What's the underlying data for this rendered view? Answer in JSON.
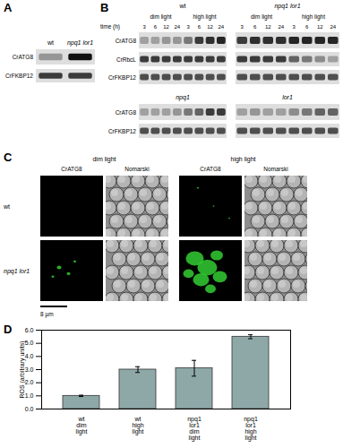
{
  "panels": {
    "A": {
      "label": "A",
      "lanes": [
        "wt",
        "npq1 lor1"
      ],
      "rows": [
        {
          "name": "CrATG8",
          "band_intensity": [
            0.35,
            1.0
          ]
        },
        {
          "name": "CrFKBP12",
          "band_intensity": [
            0.8,
            0.8
          ]
        }
      ]
    },
    "B": {
      "label": "B",
      "time_label": "time (h)",
      "conditions": [
        "dim light",
        "high light"
      ],
      "times": [
        3,
        6,
        12,
        24
      ],
      "top": [
        {
          "strain": "wt",
          "rows": [
            {
              "name": "CrATG8",
              "band_intensity": [
                0.3,
                0.3,
                0.35,
                0.35,
                0.5,
                0.8,
                0.85,
                0.9
              ]
            },
            {
              "name": "CrRbcL",
              "band_intensity": [
                0.8,
                0.8,
                0.8,
                0.8,
                0.8,
                0.8,
                0.8,
                0.8
              ]
            },
            {
              "name": "CrFKBP12",
              "band_intensity": [
                0.7,
                0.7,
                0.7,
                0.7,
                0.7,
                0.7,
                0.7,
                0.7
              ]
            }
          ]
        },
        {
          "strain": "npq1 lor1",
          "rows": [
            {
              "name": "CrATG8",
              "band_intensity": [
                0.8,
                0.85,
                0.85,
                0.85,
                0.9,
                0.9,
                0.9,
                0.9
              ]
            },
            {
              "name": "CrRbcL",
              "band_intensity": [
                0.8,
                0.8,
                0.8,
                0.8,
                0.6,
                0.5,
                0.4,
                0.3
              ]
            },
            {
              "name": "CrFKBP12",
              "band_intensity": [
                0.7,
                0.7,
                0.7,
                0.7,
                0.7,
                0.7,
                0.7,
                0.7
              ]
            }
          ]
        }
      ],
      "bottom": [
        {
          "strain": "npq1",
          "rows": [
            {
              "name": "CrATG8",
              "band_intensity": [
                0.3,
                0.3,
                0.3,
                0.35,
                0.5,
                0.6,
                0.8,
                0.8
              ]
            },
            {
              "name": "CrFKBP12",
              "band_intensity": [
                0.7,
                0.7,
                0.7,
                0.7,
                0.7,
                0.7,
                0.7,
                0.7
              ]
            }
          ]
        },
        {
          "strain": "lor1",
          "rows": [
            {
              "name": "CrATG8",
              "band_intensity": [
                0.3,
                0.35,
                0.3,
                0.3,
                0.4,
                0.5,
                0.6,
                0.6
              ]
            },
            {
              "name": "CrFKBP12",
              "band_intensity": [
                0.7,
                0.7,
                0.7,
                0.7,
                0.7,
                0.7,
                0.7,
                0.7
              ]
            }
          ]
        }
      ]
    },
    "C": {
      "label": "C",
      "conditions": [
        "dim light",
        "high light"
      ],
      "channels": [
        "CrATG8",
        "Nomarski"
      ],
      "strains": [
        "wt",
        "npq1 lor1"
      ],
      "scale_bar": "8 µm"
    },
    "D": {
      "label": "D"
    }
  },
  "chart_data": {
    "type": "bar",
    "categories": [
      "wt dim light",
      "wt high light",
      "npq1 lor1 dim light",
      "npq1 lor1 high light"
    ],
    "values": [
      1.0,
      3.0,
      3.1,
      5.5
    ],
    "errors": [
      0.05,
      0.22,
      0.6,
      0.15
    ],
    "y_label": "ROS (arbitrary units)",
    "ylim": [
      0,
      6
    ],
    "yticks": [
      0,
      1,
      2,
      3,
      4,
      5,
      6
    ],
    "color": "#8ea8a8",
    "grid": false
  }
}
